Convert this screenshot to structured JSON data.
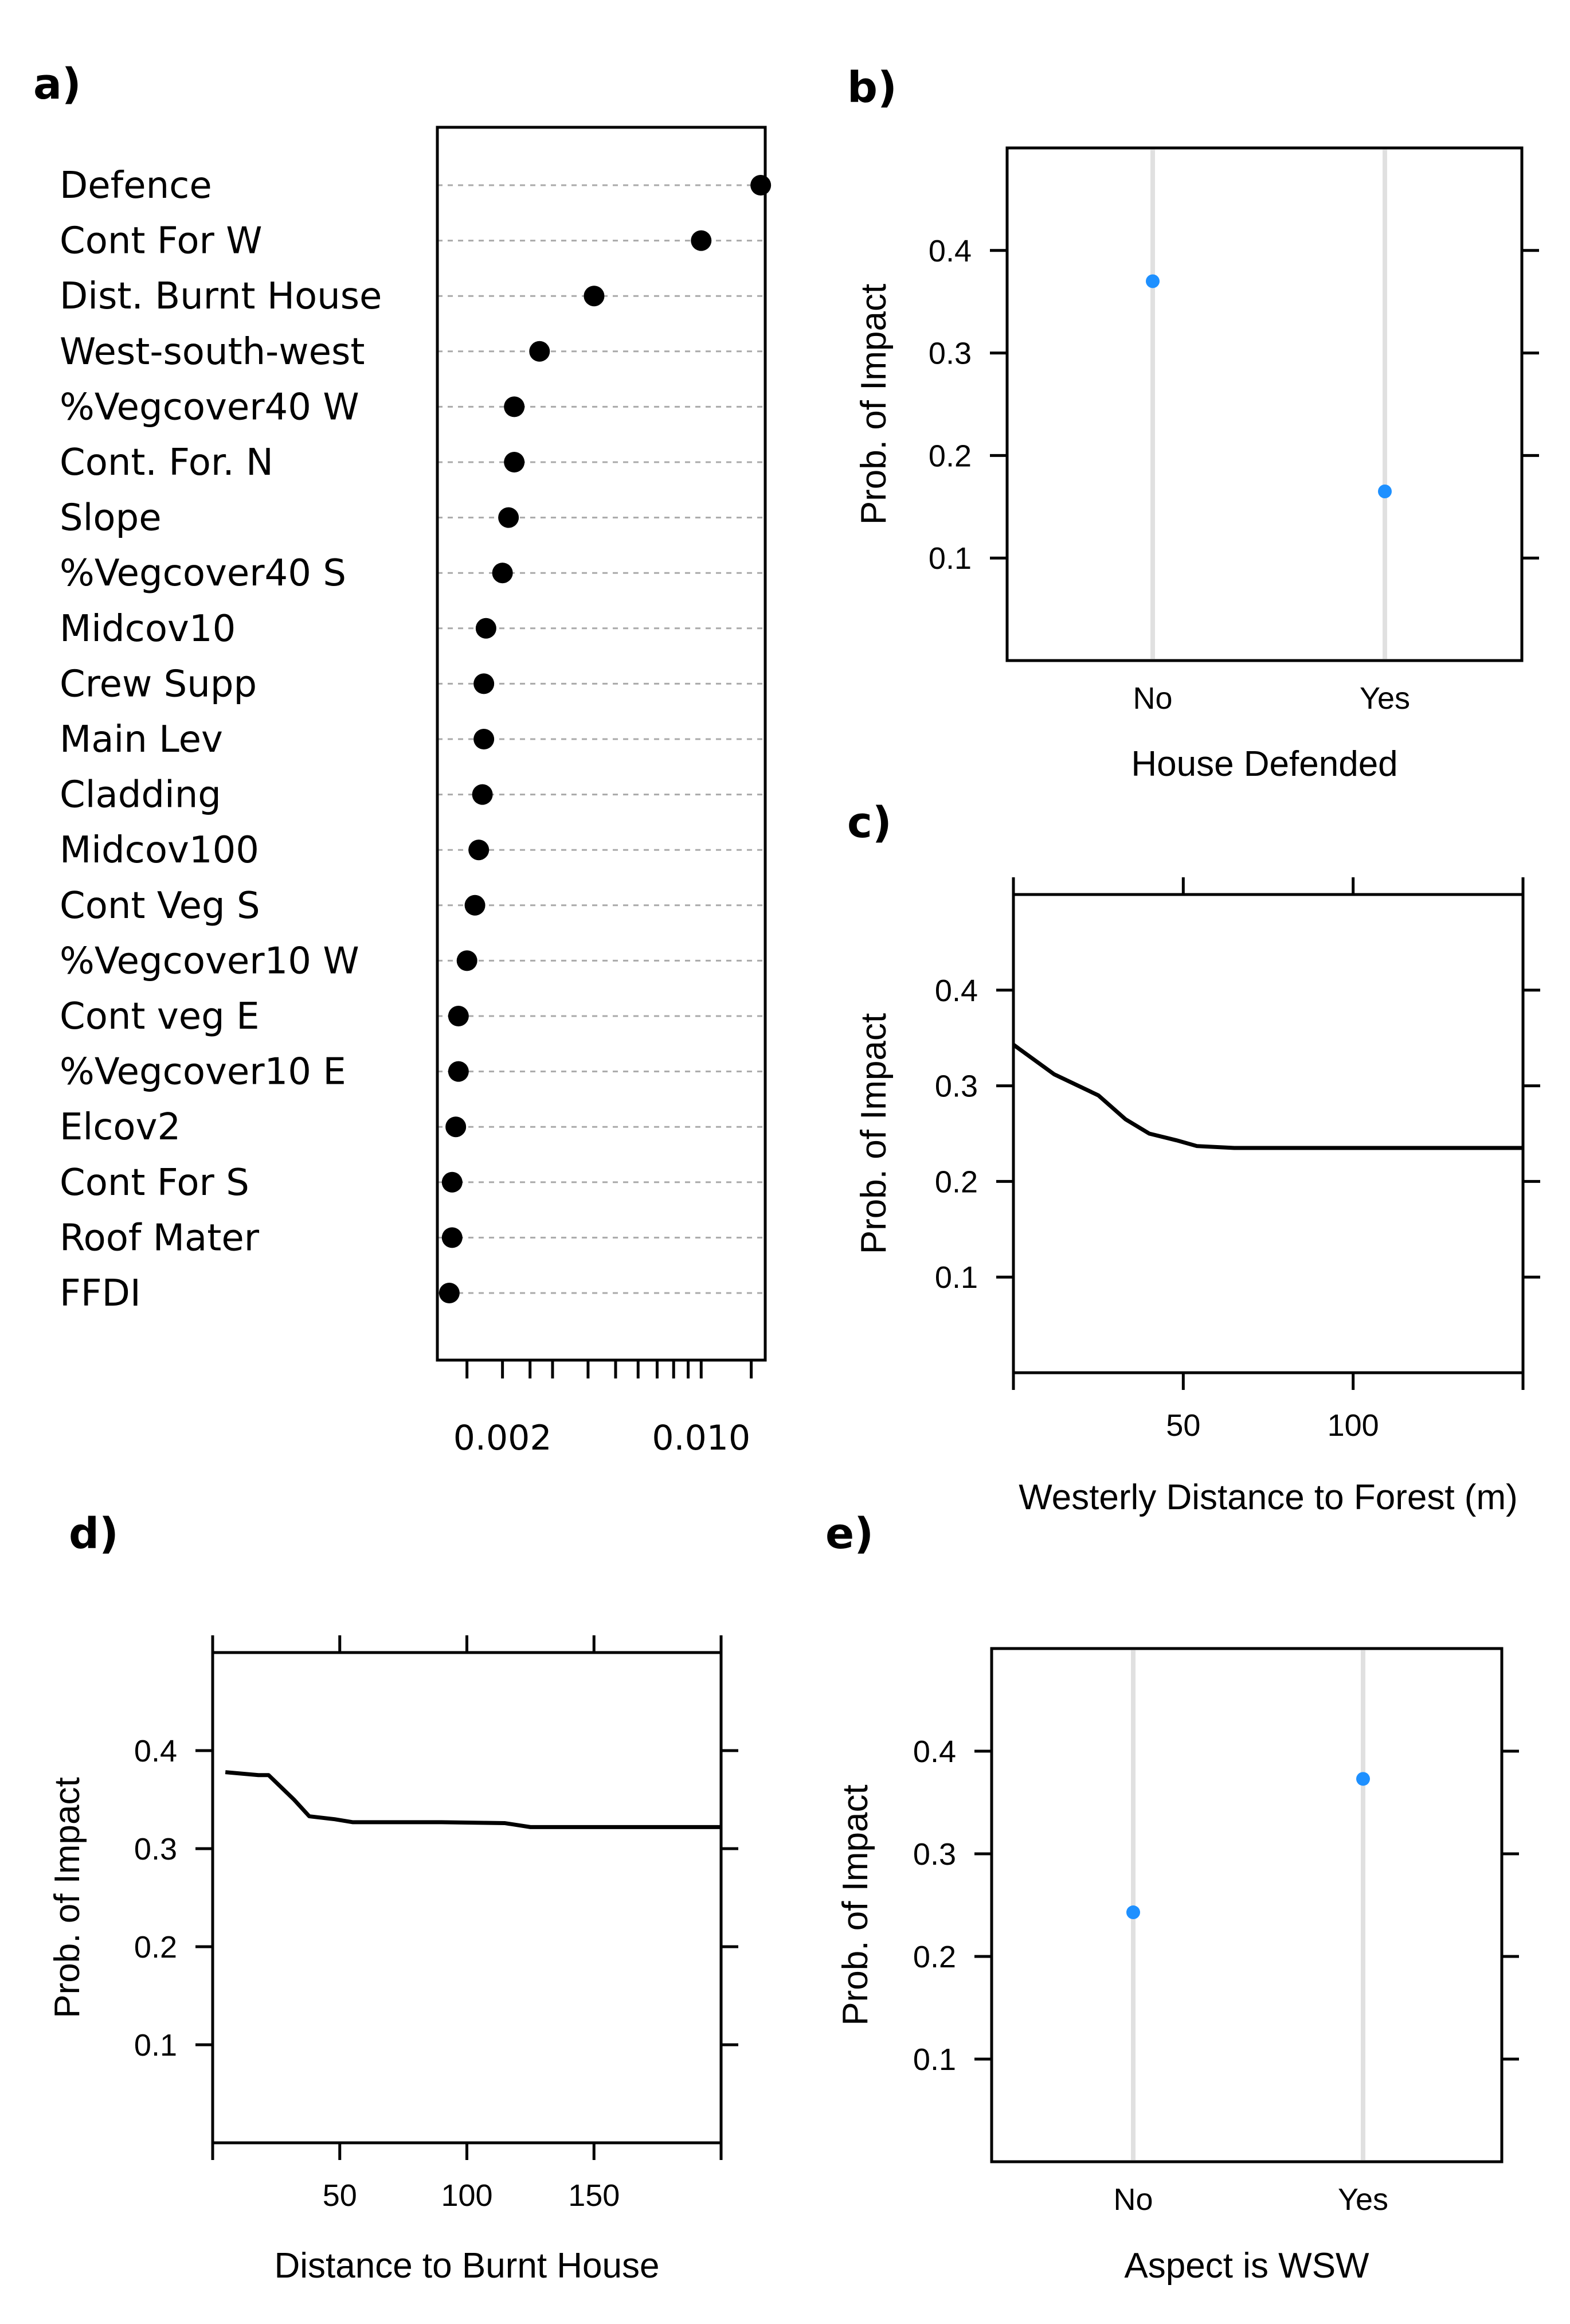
{
  "colors": {
    "point_dark": "#000000",
    "point_blue": "#1e90ff",
    "ref_line": "#e0e0e0"
  },
  "chart_data": [
    {
      "panel": "a)",
      "type": "dot",
      "categories": [
        "Defence",
        "Cont For W",
        "Dist. Burnt House",
        "West-south-west",
        "%Vegcover40 W",
        "Cont. For. N",
        "Slope",
        "%Vegcover40 S",
        "Midcov10",
        "Crew Supp",
        "Main Lev",
        "Cladding",
        "Midcov100",
        "Cont Veg S",
        "%Vegcover10 W",
        "Cont veg E",
        "%Vegcover10 E",
        "Elcov2",
        "Cont For S",
        "Roof Mater",
        "FFDI"
      ],
      "values": [
        0.0162,
        0.01,
        0.0042,
        0.0027,
        0.0022,
        0.0022,
        0.0021,
        0.002,
        0.00175,
        0.00172,
        0.00172,
        0.0017,
        0.00165,
        0.0016,
        0.0015,
        0.0014,
        0.0014,
        0.00137,
        0.00133,
        0.00133,
        0.0013
      ],
      "x_ticks": [
        0.002,
        0.01
      ],
      "x_tick_labels": [
        "0.002",
        "0.010"
      ],
      "xscale": "log",
      "xlim": [
        0.00118,
        0.0168
      ]
    },
    {
      "panel": "b)",
      "type": "scatter",
      "categories": [
        "No",
        "Yes"
      ],
      "values": [
        0.37,
        0.165
      ],
      "xlabel": "House Defended",
      "ylabel": "Prob. of Impact",
      "ylim": [
        0,
        0.5
      ],
      "y_ticks": [
        0.1,
        0.2,
        0.3,
        0.4
      ],
      "y_tick_labels": [
        "0.1",
        "0.2",
        "0.3",
        "0.4"
      ]
    },
    {
      "panel": "c)",
      "type": "line",
      "x": [
        0,
        12,
        25,
        33,
        40,
        48,
        54,
        65,
        80,
        100,
        130,
        150
      ],
      "y": [
        0.343,
        0.312,
        0.29,
        0.265,
        0.25,
        0.243,
        0.237,
        0.235,
        0.235,
        0.235,
        0.235,
        0.235
      ],
      "xlabel": "Westerly Distance to Forest (m)",
      "ylabel": "Prob. of Impact",
      "xlim": [
        0,
        150
      ],
      "ylim": [
        0,
        0.5
      ],
      "x_ticks": [
        50,
        100
      ],
      "x_tick_labels": [
        "50",
        "100"
      ],
      "x_minor_ticks": [
        0,
        50,
        100,
        150
      ],
      "y_ticks": [
        0.1,
        0.2,
        0.3,
        0.4
      ],
      "y_tick_labels": [
        "0.1",
        "0.2",
        "0.3",
        "0.4"
      ]
    },
    {
      "panel": "d)",
      "type": "line",
      "x": [
        5,
        18,
        22,
        32,
        38,
        48,
        55,
        70,
        90,
        115,
        125,
        140,
        200
      ],
      "y": [
        0.378,
        0.375,
        0.375,
        0.35,
        0.333,
        0.33,
        0.327,
        0.327,
        0.327,
        0.326,
        0.322,
        0.322,
        0.322
      ],
      "xlabel": "Distance to Burnt House",
      "ylabel": "Prob. of Impact",
      "xlim": [
        0,
        200
      ],
      "ylim": [
        0,
        0.5
      ],
      "x_ticks": [
        50,
        100,
        150
      ],
      "x_tick_labels": [
        "50",
        "100",
        "150"
      ],
      "x_minor_ticks": [
        0,
        50,
        100,
        150,
        200
      ],
      "y_ticks": [
        0.1,
        0.2,
        0.3,
        0.4
      ],
      "y_tick_labels": [
        "0.1",
        "0.2",
        "0.3",
        "0.4"
      ]
    },
    {
      "panel": "e)",
      "type": "scatter",
      "categories": [
        "No",
        "Yes"
      ],
      "values": [
        0.243,
        0.373
      ],
      "xlabel": "Aspect is WSW",
      "ylabel": "Prob. of Impact",
      "ylim": [
        0,
        0.5
      ],
      "y_ticks": [
        0.1,
        0.2,
        0.3,
        0.4
      ],
      "y_tick_labels": [
        "0.1",
        "0.2",
        "0.3",
        "0.4"
      ]
    }
  ]
}
